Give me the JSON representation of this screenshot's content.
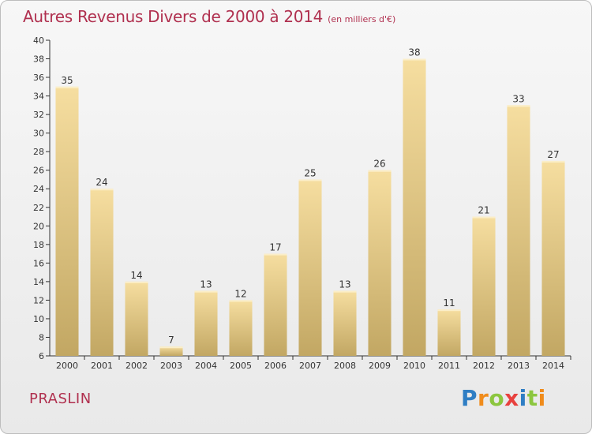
{
  "title": {
    "main": "Autres Revenus Divers de 2000 à 2014",
    "sub": "(en milliers d'€)"
  },
  "location": "PRASLIN",
  "logo": {
    "letters": [
      "P",
      "r",
      "o",
      "x",
      "i",
      "t",
      "i"
    ],
    "colors": [
      "#2f7ec4",
      "#f08c1c",
      "#8cc63f",
      "#e8413e",
      "#2f7ec4",
      "#8cc63f",
      "#f08c1c"
    ]
  },
  "colors": {
    "bar_top": "#f6dea0",
    "bar_bottom": "#c2a763",
    "axis": "#333333",
    "title": "#b0304f"
  },
  "chart_data": {
    "type": "bar",
    "title": "Autres Revenus Divers de 2000 à 2014",
    "subtitle": "(en milliers d'€)",
    "xlabel": "",
    "ylabel": "",
    "categories": [
      "2000",
      "2001",
      "2002",
      "2003",
      "2004",
      "2005",
      "2006",
      "2007",
      "2008",
      "2009",
      "2010",
      "2011",
      "2012",
      "2013",
      "2014"
    ],
    "values": [
      35,
      24,
      14,
      7,
      13,
      12,
      17,
      25,
      13,
      26,
      38,
      11,
      21,
      33,
      27
    ],
    "ylim": [
      6,
      40
    ],
    "yticks": [
      6,
      8,
      10,
      12,
      14,
      16,
      18,
      20,
      22,
      24,
      26,
      28,
      30,
      32,
      34,
      36,
      38,
      40
    ],
    "grid": false,
    "legend": "none"
  }
}
